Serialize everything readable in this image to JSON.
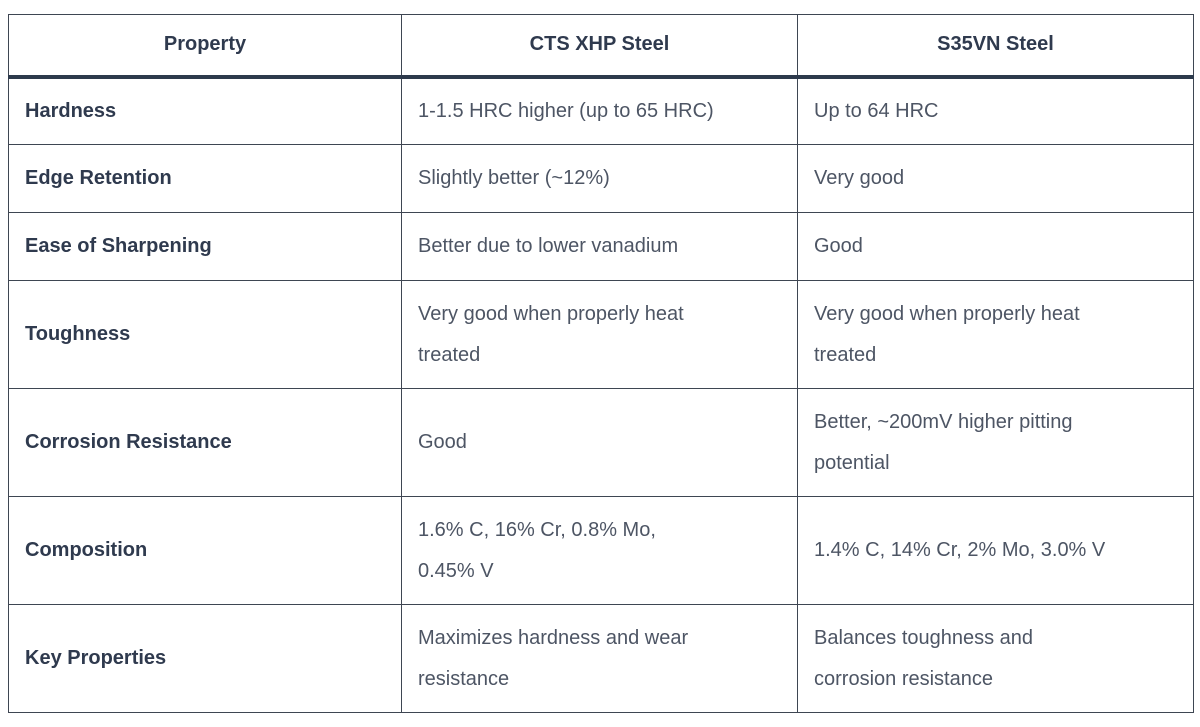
{
  "table": {
    "headers": [
      {
        "label": "Property"
      },
      {
        "label": "CTS XHP Steel"
      },
      {
        "label": "S35VN Steel"
      }
    ],
    "rows": [
      {
        "property": "Hardness",
        "cts_xhp": "1-1.5 HRC higher (up to 65 HRC)",
        "s35vn": "Up to 64 HRC"
      },
      {
        "property": "Edge Retention",
        "cts_xhp": "Slightly better (~12%)",
        "s35vn": "Very good"
      },
      {
        "property": "Ease of Sharpening",
        "cts_xhp": "Better due to lower vanadium",
        "s35vn": "Good"
      },
      {
        "property": "Toughness",
        "cts_xhp": "Very good when properly heat\ntreated",
        "s35vn": "Very good when properly heat\ntreated"
      },
      {
        "property": "Corrosion Resistance",
        "cts_xhp": "Good",
        "s35vn": "Better, ~200mV higher pitting\npotential"
      },
      {
        "property": "Composition",
        "cts_xhp": "1.6% C, 16% Cr, 0.8% Mo,\n0.45% V",
        "s35vn": "1.4% C, 14% Cr, 2% Mo, 3.0% V"
      },
      {
        "property": "Key Properties",
        "cts_xhp": "Maximizes hardness and wear\nresistance",
        "s35vn": "Balances toughness and\ncorrosion resistance"
      }
    ],
    "colors": {
      "background": "#ffffff",
      "header_text": "#2f3a4e",
      "value_text": "#4d5564",
      "border": "#3e4652",
      "header_underline": "#2d3a4c"
    }
  }
}
